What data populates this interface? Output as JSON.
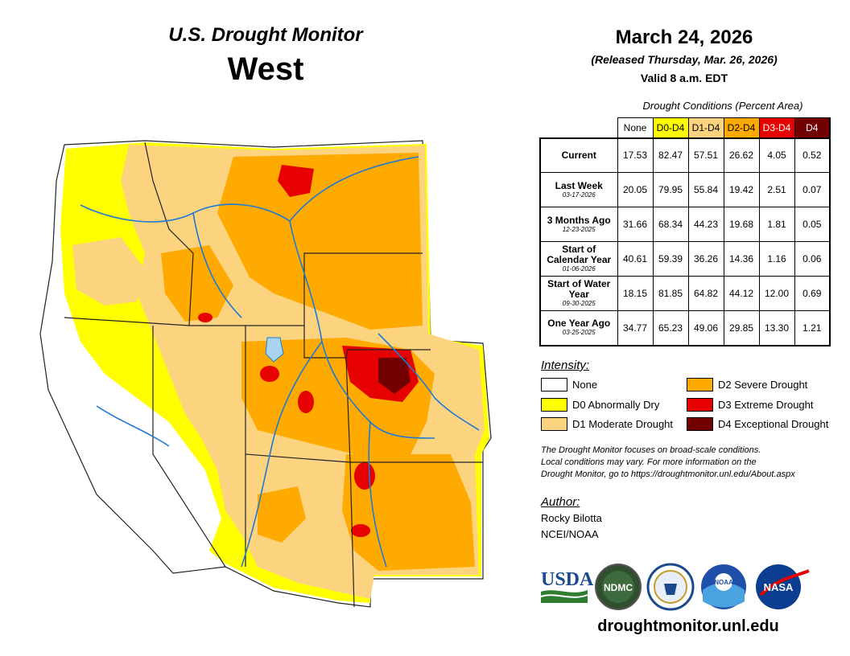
{
  "header": {
    "title": "U.S. Drought Monitor",
    "region": "West",
    "date": "March 24, 2026",
    "released": "(Released Thursday, Mar. 26, 2026)",
    "valid": "Valid 8 a.m. EDT"
  },
  "table": {
    "caption": "Drought Conditions (Percent Area)",
    "columns": [
      {
        "label": "None",
        "color": "#ffffff",
        "text_color": "#000000"
      },
      {
        "label": "D0-D4",
        "color": "#ffff00",
        "text_color": "#000000"
      },
      {
        "label": "D1-D4",
        "color": "#fcd37f",
        "text_color": "#000000"
      },
      {
        "label": "D2-D4",
        "color": "#ffaa00",
        "text_color": "#000000"
      },
      {
        "label": "D3-D4",
        "color": "#e60000",
        "text_color": "#ffffff"
      },
      {
        "label": "D4",
        "color": "#730000",
        "text_color": "#ffffff"
      }
    ],
    "rows": [
      {
        "label": "Current",
        "sub": "",
        "values": [
          "17.53",
          "82.47",
          "57.51",
          "26.62",
          "4.05",
          "0.52"
        ]
      },
      {
        "label": "Last Week",
        "sub": "03-17-2026",
        "values": [
          "20.05",
          "79.95",
          "55.84",
          "19.42",
          "2.51",
          "0.07"
        ]
      },
      {
        "label": "3 Months Ago",
        "sub": "12-23-2025",
        "values": [
          "31.66",
          "68.34",
          "44.23",
          "19.68",
          "1.81",
          "0.05"
        ]
      },
      {
        "label": "Start of Calendar Year",
        "sub": "01-06-2026",
        "values": [
          "40.61",
          "59.39",
          "36.26",
          "14.36",
          "1.16",
          "0.06"
        ]
      },
      {
        "label": "Start of Water Year",
        "sub": "09-30-2025",
        "values": [
          "18.15",
          "81.85",
          "64.82",
          "44.12",
          "12.00",
          "0.69"
        ]
      },
      {
        "label": "One Year Ago",
        "sub": "03-25-2025",
        "values": [
          "34.77",
          "65.23",
          "49.06",
          "29.85",
          "13.30",
          "1.21"
        ]
      }
    ]
  },
  "legend": {
    "title": "Intensity:",
    "items": [
      {
        "label": "None",
        "color": "#ffffff"
      },
      {
        "label": "D0 Abnormally Dry",
        "color": "#ffff00"
      },
      {
        "label": "D1 Moderate Drought",
        "color": "#fcd37f"
      },
      {
        "label": "D2 Severe Drought",
        "color": "#ffaa00"
      },
      {
        "label": "D3 Extreme Drought",
        "color": "#e60000"
      },
      {
        "label": "D4 Exceptional Drought",
        "color": "#730000"
      }
    ]
  },
  "note": {
    "line1": "The Drought Monitor focuses on broad-scale conditions.",
    "line2": "Local conditions may vary. For more information on the",
    "line3": "Drought Monitor, go to https://droughtmonitor.unl.edu/About.aspx"
  },
  "author": {
    "title": "Author:",
    "name": "Rocky Bilotta",
    "org": "NCEI/NOAA"
  },
  "logos": {
    "usda": "USDA",
    "ndmc": "NDMC",
    "noaa": "NOAA",
    "nasa": "NASA"
  },
  "footer": {
    "site": "droughtmonitor.unl.edu"
  },
  "colors": {
    "none": "#ffffff",
    "d0": "#ffff00",
    "d1": "#fcd37f",
    "d2": "#ffaa00",
    "d3": "#e60000",
    "d4": "#730000",
    "river": "#1e7ad6"
  }
}
